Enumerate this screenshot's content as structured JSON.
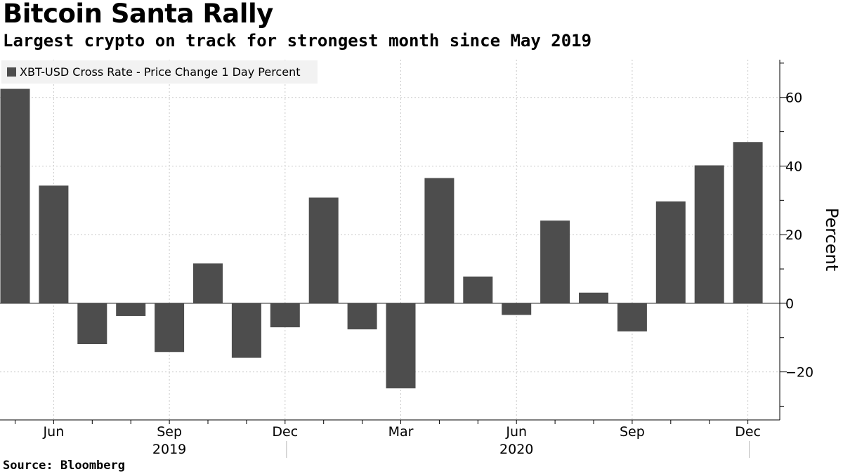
{
  "header": {
    "title": "Bitcoin Santa Rally",
    "subtitle": "Largest crypto on track for strongest month since May 2019"
  },
  "footer": {
    "source": "Source: Bloomberg"
  },
  "colors": {
    "bar": "#4d4d4d",
    "grid": "#c8c8c8",
    "axis": "#000000",
    "legend_bg": "#f2f2f2"
  },
  "chart_data": {
    "type": "bar",
    "title": "Bitcoin Santa Rally",
    "subtitle": "Largest crypto on track for strongest month since May 2019",
    "ylabel": "Percent",
    "xlabel": "",
    "ylim": [
      -34,
      71
    ],
    "yticks": [
      -20,
      0,
      20,
      40,
      60
    ],
    "grid": true,
    "legend": {
      "entries": [
        "XBT-USD Cross Rate - Price Change 1 Day Percent"
      ],
      "position": "top-left"
    },
    "categories": [
      "May 2019",
      "Jun 2019",
      "Jul 2019",
      "Aug 2019",
      "Sep 2019",
      "Oct 2019",
      "Nov 2019",
      "Dec 2019",
      "Jan 2020",
      "Feb 2020",
      "Mar 2020",
      "Apr 2020",
      "May 2020",
      "Jun 2020",
      "Jul 2020",
      "Aug 2020",
      "Sep 2020",
      "Oct 2020",
      "Nov 2020",
      "Dec 2020"
    ],
    "series": [
      {
        "name": "XBT-USD Cross Rate - Price Change 1 Day Percent",
        "values": [
          62.5,
          34.3,
          -11.9,
          -3.7,
          -14.2,
          11.6,
          -15.9,
          -7.0,
          30.8,
          -7.6,
          -24.8,
          36.5,
          7.8,
          -3.4,
          24.1,
          3.1,
          -8.2,
          29.7,
          40.2,
          47.0
        ]
      }
    ],
    "x_tick_labels": [
      {
        "label": "Jun",
        "index": 1
      },
      {
        "label": "Sep",
        "index": 4
      },
      {
        "label": "Dec",
        "index": 7
      },
      {
        "label": "Mar",
        "index": 10
      },
      {
        "label": "Jun",
        "index": 13
      },
      {
        "label": "Sep",
        "index": 16
      },
      {
        "label": "Dec",
        "index": 19
      }
    ],
    "year_labels": [
      {
        "label": "2019",
        "index": 4
      },
      {
        "label": "2020",
        "index": 13
      }
    ]
  }
}
